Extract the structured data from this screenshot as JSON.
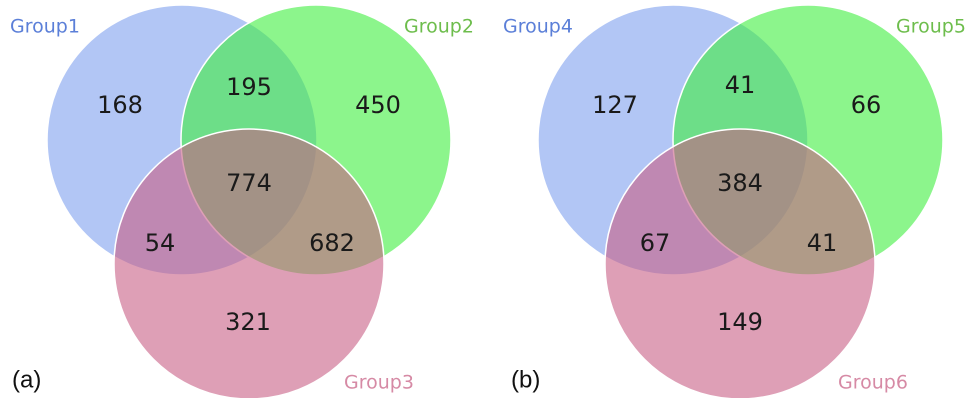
{
  "colors": {
    "circle_a": "#7fa0ef",
    "circle_b": "#3fee3f",
    "circle_c": "#c85f86",
    "label_a": "#5b7fd8",
    "label_b": "#6dbd4c",
    "label_c": "#d68aa5"
  },
  "venns": [
    {
      "panel": "(a)",
      "groups": [
        "Group1",
        "Group2",
        "Group3"
      ],
      "regions": {
        "only_1": "168",
        "only_2": "450",
        "only_3": "321",
        "g12": "195",
        "g13": "54",
        "g23": "682",
        "g123": "774"
      }
    },
    {
      "panel": "(b)",
      "groups": [
        "Group4",
        "Group5",
        "Group6"
      ],
      "regions": {
        "only_1": "127",
        "only_2": "66",
        "only_3": "149",
        "g12": "41",
        "g13": "67",
        "g23": "41",
        "g123": "384"
      }
    }
  ]
}
